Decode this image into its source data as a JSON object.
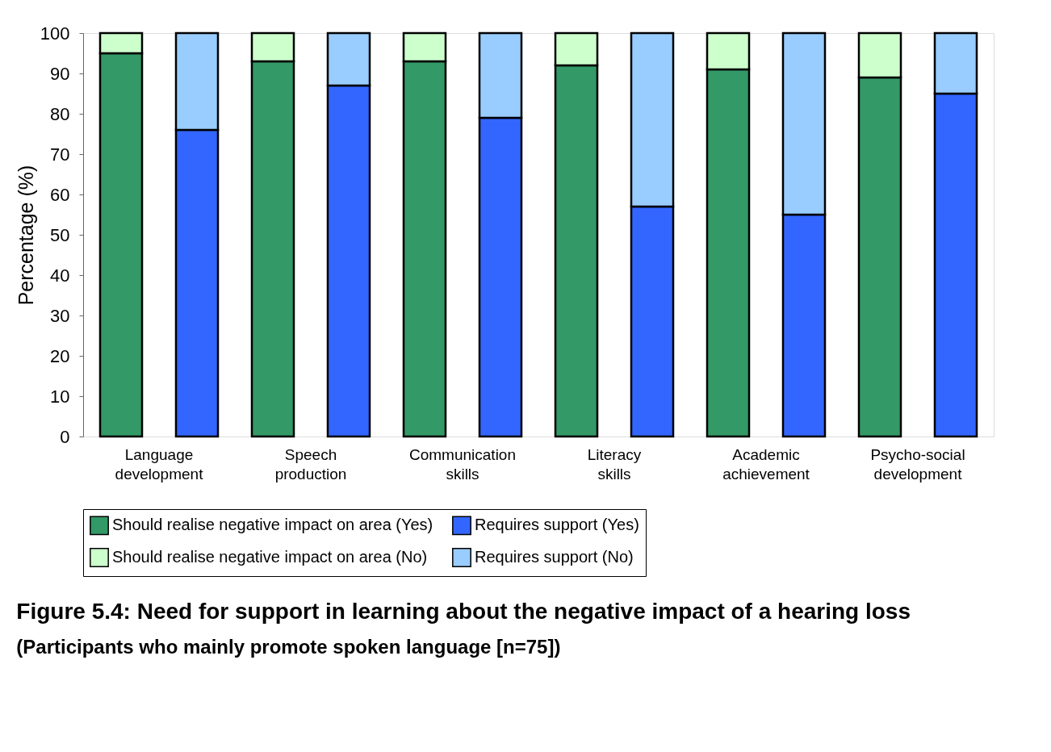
{
  "chart_data": {
    "type": "bar",
    "stacked": true,
    "title": "Figure 5.4: Need for support in learning about the negative impact of a hearing loss",
    "subtitle": "(Participants who mainly promote spoken language [n=75])",
    "ylabel": "Percentage (%)",
    "categories": [
      "Language development",
      null,
      "Speech production",
      null,
      "Communication skills",
      null,
      "Literacy skills",
      null,
      "Academic achievement",
      null,
      "Psycho-social development",
      null
    ],
    "series": [
      {
        "name": "Should realise negative impact on area (Yes)",
        "color": "#339966",
        "values": [
          95,
          null,
          93,
          null,
          93,
          null,
          92,
          null,
          91,
          null,
          89,
          null
        ]
      },
      {
        "name": "Should realise negative impact on area (No)",
        "color": "#ccffcc",
        "values": [
          5,
          null,
          7,
          null,
          7,
          null,
          8,
          null,
          9,
          null,
          11,
          null
        ]
      },
      {
        "name": "Requires support (Yes)",
        "color": "#3366ff",
        "values": [
          null,
          76,
          null,
          87,
          null,
          79,
          null,
          57,
          null,
          55,
          null,
          85
        ]
      },
      {
        "name": "Requires support (No)",
        "color": "#99ccff",
        "values": [
          null,
          24,
          null,
          13,
          null,
          21,
          null,
          43,
          null,
          45,
          null,
          15
        ]
      }
    ],
    "ylim": [
      0,
      100
    ],
    "yticks": [
      0,
      10,
      20,
      30,
      40,
      50,
      60,
      70,
      80,
      90,
      100
    ],
    "grid": false,
    "legend": "bottom"
  }
}
